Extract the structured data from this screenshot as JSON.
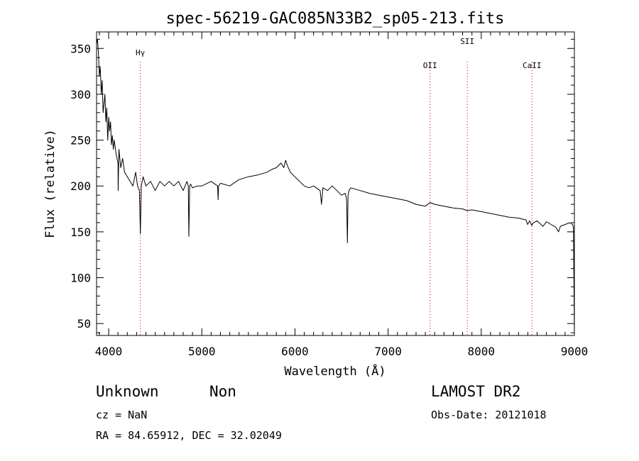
{
  "chart_data": {
    "type": "line",
    "title": "spec-56219-GAC085N33B2_sp05-213.fits",
    "xlabel": "Wavelength (Å)",
    "ylabel": "Flux (relative)",
    "xlim": [
      3870,
      9000
    ],
    "ylim": [
      37,
      368
    ],
    "xticks": [
      4000,
      5000,
      6000,
      7000,
      8000,
      9000
    ],
    "xtick_labels": [
      "4000",
      "5000",
      "6000",
      "7000",
      "8000",
      "9000"
    ],
    "yticks": [
      50,
      100,
      150,
      200,
      250,
      300,
      350
    ],
    "ytick_labels": [
      "50",
      "100",
      "150",
      "200",
      "250",
      "300",
      "350"
    ],
    "grid": false,
    "line_color": "#000000",
    "marker_color": "#cc0000",
    "lines": [
      {
        "label": "Hγ",
        "x": 4340
      },
      {
        "label": "OII",
        "x": 7450
      },
      {
        "label": "SII",
        "x": 7850
      },
      {
        "label": "CaII",
        "x": 8545
      }
    ],
    "series": [
      {
        "x": [
          3870,
          3880,
          3890,
          3900,
          3910,
          3920,
          3930,
          3940,
          3950,
          3960,
          3970,
          3980,
          3990,
          4000,
          4010,
          4020,
          4030,
          4040,
          4050,
          4060,
          4080,
          4100,
          4102,
          4110,
          4130,
          4150,
          4170,
          4200,
          4230,
          4260,
          4290,
          4310,
          4330,
          4340,
          4350,
          4370,
          4400,
          4450,
          4500,
          4550,
          4600,
          4650,
          4700,
          4750,
          4800,
          4840,
          4855,
          4861,
          4870,
          4880,
          4900,
          4950,
          5000,
          5100,
          5170,
          5175,
          5180,
          5200,
          5300,
          5400,
          5500,
          5600,
          5700,
          5750,
          5800,
          5850,
          5880,
          5900,
          5920,
          5950,
          6000,
          6050,
          6100,
          6150,
          6200,
          6270,
          6285,
          6300,
          6350,
          6400,
          6450,
          6500,
          6540,
          6555,
          6563,
          6570,
          6580,
          6600,
          6700,
          6800,
          6900,
          7000,
          7100,
          7200,
          7300,
          7400,
          7450,
          7500,
          7600,
          7700,
          7800,
          7850,
          7900,
          8000,
          8100,
          8200,
          8300,
          8400,
          8480,
          8498,
          8520,
          8542,
          8560,
          8600,
          8662,
          8700,
          8750,
          8800,
          8830,
          8850,
          8900,
          8950,
          8980,
          8990,
          9000
        ],
        "values": [
          355,
          360,
          345,
          320,
          330,
          300,
          315,
          280,
          290,
          300,
          270,
          285,
          250,
          275,
          260,
          270,
          245,
          255,
          240,
          250,
          235,
          225,
          195,
          240,
          220,
          230,
          215,
          210,
          205,
          200,
          215,
          200,
          195,
          148,
          200,
          210,
          200,
          205,
          195,
          205,
          200,
          205,
          200,
          205,
          195,
          205,
          200,
          145,
          200,
          202,
          198,
          200,
          200,
          205,
          200,
          185,
          200,
          203,
          200,
          207,
          210,
          212,
          215,
          218,
          220,
          225,
          220,
          228,
          222,
          215,
          210,
          205,
          200,
          198,
          200,
          195,
          180,
          198,
          195,
          200,
          195,
          190,
          192,
          185,
          138,
          190,
          195,
          198,
          195,
          192,
          190,
          188,
          186,
          184,
          180,
          178,
          182,
          180,
          178,
          176,
          175,
          173,
          174,
          172,
          170,
          168,
          166,
          165,
          163,
          158,
          162,
          157,
          160,
          162,
          156,
          161,
          158,
          155,
          150,
          156,
          158,
          160,
          158,
          155,
          40
        ]
      }
    ]
  },
  "footer": {
    "object_class": "Unknown",
    "subclass": "Non",
    "survey": "LAMOST DR2",
    "redshift": "cz = NaN",
    "obs_date": "Obs-Date: 20121018",
    "coords": "RA =  84.65912, DEC =  32.02049"
  }
}
